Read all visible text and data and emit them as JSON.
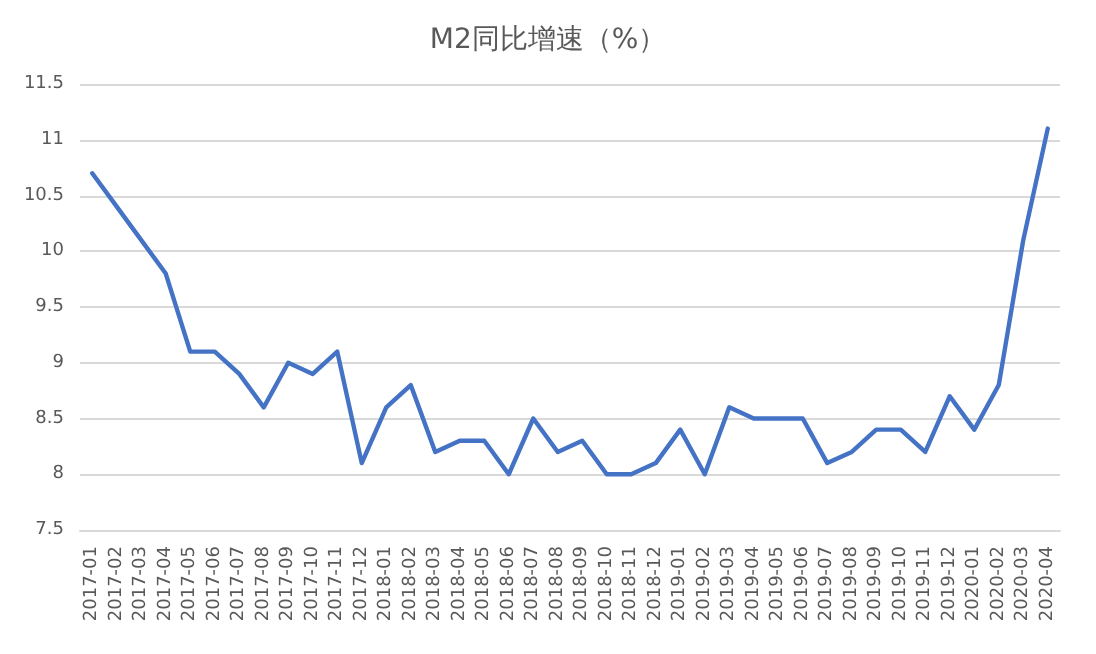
{
  "chart_data": {
    "type": "line",
    "title": "M2同比增速（%）",
    "categories": [
      "2017-01",
      "2017-02",
      "2017-03",
      "2017-04",
      "2017-05",
      "2017-06",
      "2017-07",
      "2017-08",
      "2017-09",
      "2017-10",
      "2017-11",
      "2017-12",
      "2018-01",
      "2018-02",
      "2018-03",
      "2018-04",
      "2018-05",
      "2018-06",
      "2018-07",
      "2018-08",
      "2018-09",
      "2018-10",
      "2018-11",
      "2018-12",
      "2019-01",
      "2019-02",
      "2019-03",
      "2019-04",
      "2019-05",
      "2019-06",
      "2019-07",
      "2019-08",
      "2019-09",
      "2019-10",
      "2019-11",
      "2019-12",
      "2020-01",
      "2020-02",
      "2020-03",
      "2020-04"
    ],
    "series": [
      {
        "color": "#4472c4",
        "values": [
          10.7,
          10.4,
          10.1,
          9.8,
          9.1,
          9.1,
          8.9,
          8.6,
          9.0,
          8.9,
          9.1,
          8.1,
          8.6,
          8.8,
          8.2,
          8.3,
          8.3,
          8.0,
          8.5,
          8.2,
          8.3,
          8.0,
          8.0,
          8.1,
          8.4,
          8.0,
          8.6,
          8.5,
          8.5,
          8.5,
          8.1,
          8.2,
          8.4,
          8.4,
          8.2,
          8.7,
          8.4,
          8.8,
          10.1,
          11.1
        ]
      }
    ],
    "ylim": [
      7.5,
      11.5
    ],
    "yticks": [
      7.5,
      8,
      8.5,
      9,
      9.5,
      10,
      10.5,
      11,
      11.5
    ],
    "grid": "y",
    "marker": "none",
    "line_style": "solid"
  }
}
